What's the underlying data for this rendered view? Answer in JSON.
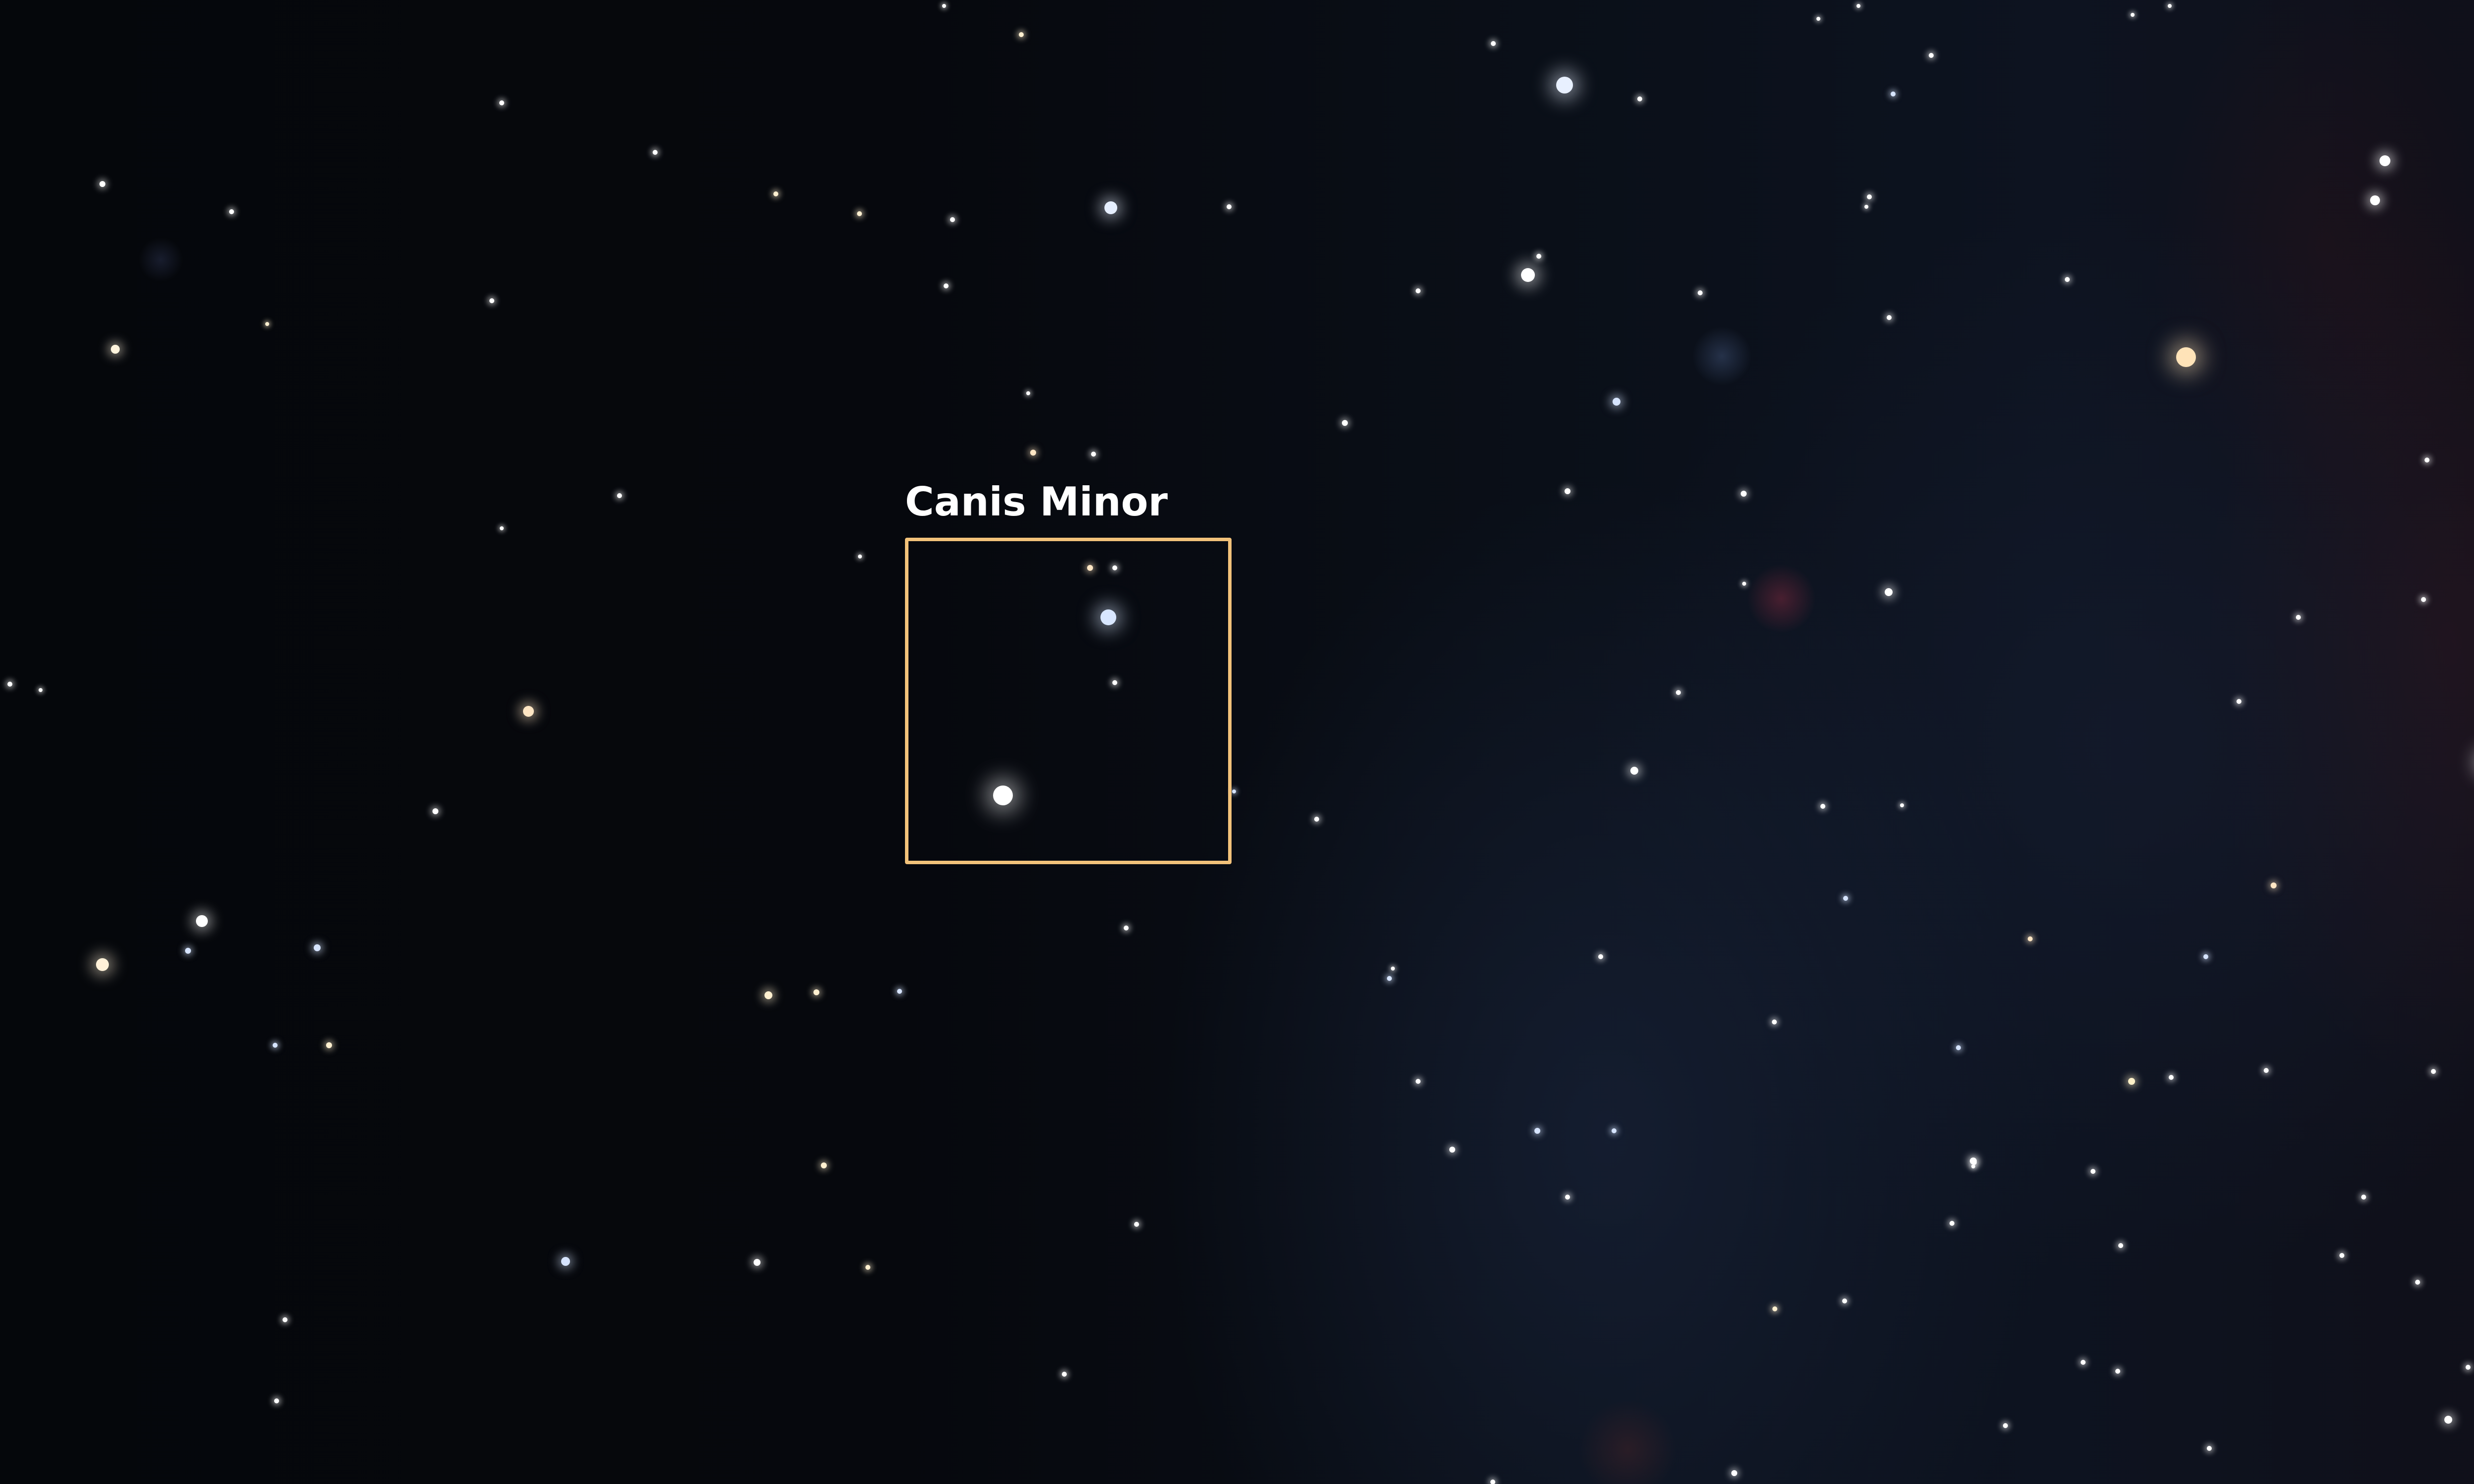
{
  "constellation": {
    "label": "Canis Minor",
    "box_color": "#f2c27a"
  },
  "colors": {
    "sky_dark": "#05070b",
    "sky_blue": "#0d1320",
    "nebula_red": "#48161a"
  }
}
